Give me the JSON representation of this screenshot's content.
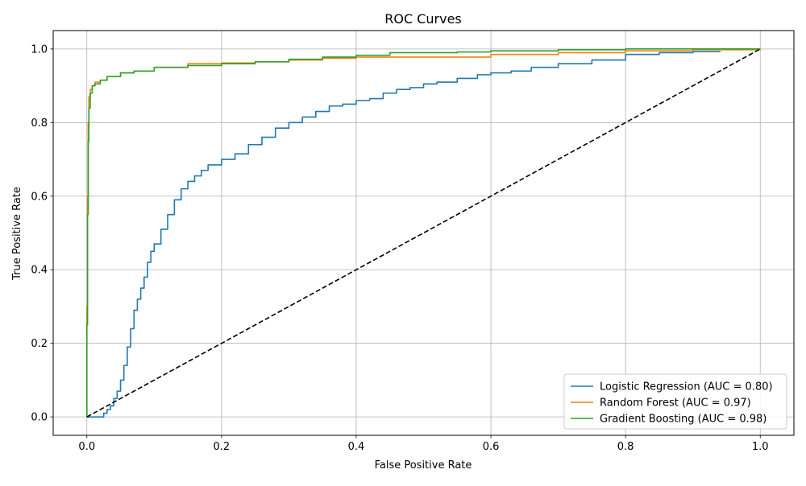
{
  "chart_data": {
    "type": "line",
    "title": "ROC Curves",
    "xlabel": "False Positive Rate",
    "ylabel": "True Positive Rate",
    "xlim": [
      -0.05,
      1.05
    ],
    "ylim": [
      -0.05,
      1.05
    ],
    "xticks": [
      0.0,
      0.2,
      0.4,
      0.6,
      0.8,
      1.0
    ],
    "yticks": [
      0.0,
      0.2,
      0.4,
      0.6,
      0.8,
      1.0
    ],
    "xtick_labels": [
      "0.0",
      "0.2",
      "0.4",
      "0.6",
      "0.8",
      "1.0"
    ],
    "ytick_labels": [
      "0.0",
      "0.2",
      "0.4",
      "0.6",
      "0.8",
      "1.0"
    ],
    "grid": true,
    "legend_position": "lower-right",
    "series": [
      {
        "name": "Logistic Regression (AUC = 0.80)",
        "color": "#1f77b4",
        "x": [
          0.0,
          0.02,
          0.025,
          0.03,
          0.035,
          0.04,
          0.045,
          0.05,
          0.055,
          0.06,
          0.065,
          0.07,
          0.075,
          0.08,
          0.085,
          0.09,
          0.095,
          0.1,
          0.11,
          0.12,
          0.13,
          0.14,
          0.15,
          0.16,
          0.17,
          0.18,
          0.2,
          0.22,
          0.24,
          0.26,
          0.28,
          0.3,
          0.32,
          0.34,
          0.36,
          0.38,
          0.4,
          0.42,
          0.44,
          0.46,
          0.48,
          0.5,
          0.52,
          0.55,
          0.58,
          0.6,
          0.63,
          0.66,
          0.7,
          0.75,
          0.8,
          0.85,
          0.9,
          0.94
        ],
        "y": [
          0.0,
          0.0,
          0.01,
          0.02,
          0.03,
          0.05,
          0.07,
          0.1,
          0.14,
          0.19,
          0.24,
          0.29,
          0.32,
          0.35,
          0.38,
          0.42,
          0.45,
          0.47,
          0.51,
          0.55,
          0.59,
          0.62,
          0.64,
          0.655,
          0.67,
          0.685,
          0.7,
          0.715,
          0.74,
          0.76,
          0.785,
          0.8,
          0.815,
          0.83,
          0.845,
          0.85,
          0.86,
          0.865,
          0.88,
          0.89,
          0.895,
          0.905,
          0.91,
          0.92,
          0.93,
          0.935,
          0.94,
          0.95,
          0.96,
          0.97,
          0.985,
          0.99,
          0.993,
          0.995
        ]
      },
      {
        "name": "Random Forest (AUC = 0.97)",
        "color": "#ff7f0e",
        "x": [
          0.0,
          0.0,
          0.001,
          0.002,
          0.003,
          0.005,
          0.008,
          0.012,
          0.02,
          0.03,
          0.05,
          0.07,
          0.1,
          0.15,
          0.2,
          0.25,
          0.3,
          0.35,
          0.4,
          0.45,
          0.5,
          0.6,
          0.7,
          0.8,
          0.9,
          1.0
        ],
        "y": [
          0.0,
          0.3,
          0.6,
          0.8,
          0.87,
          0.89,
          0.9,
          0.91,
          0.915,
          0.925,
          0.935,
          0.94,
          0.95,
          0.96,
          0.962,
          0.965,
          0.97,
          0.975,
          0.978,
          0.978,
          0.978,
          0.985,
          0.99,
          0.995,
          0.998,
          1.0
        ]
      },
      {
        "name": "Gradient Boosting (AUC = 0.98)",
        "color": "#2ca02c",
        "x": [
          0.0,
          0.0,
          0.001,
          0.002,
          0.003,
          0.005,
          0.008,
          0.012,
          0.02,
          0.03,
          0.05,
          0.07,
          0.1,
          0.15,
          0.2,
          0.25,
          0.3,
          0.35,
          0.4,
          0.45,
          0.5,
          0.55,
          0.6,
          0.7,
          0.8,
          0.9,
          1.0
        ],
        "y": [
          0.0,
          0.25,
          0.55,
          0.75,
          0.84,
          0.88,
          0.9,
          0.905,
          0.915,
          0.925,
          0.935,
          0.94,
          0.95,
          0.955,
          0.96,
          0.965,
          0.972,
          0.978,
          0.983,
          0.99,
          0.99,
          0.992,
          0.995,
          0.998,
          1.0,
          1.0,
          1.0
        ]
      },
      {
        "name": "",
        "color": "#000000",
        "dashed": true,
        "x": [
          0.0,
          1.0
        ],
        "y": [
          0.0,
          1.0
        ]
      }
    ]
  }
}
